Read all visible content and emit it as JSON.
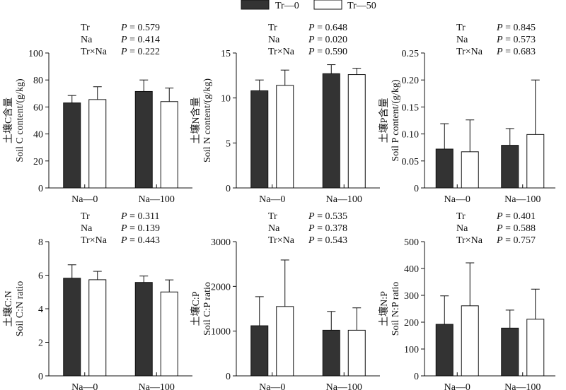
{
  "legend": {
    "items": [
      {
        "label": "Tr—0",
        "color": "#333333"
      },
      {
        "label": "Tr—50",
        "color": "#ffffff"
      }
    ]
  },
  "chart_data": [
    {
      "type": "bar",
      "ylabel_cn": "土壤C含量",
      "ylabel": "Soil C content/(g/kg)",
      "ylim": [
        0,
        100
      ],
      "yticks": [
        0,
        20,
        40,
        60,
        80,
        100
      ],
      "categories": [
        "Na—0",
        "Na—100"
      ],
      "series": [
        {
          "name": "Tr—0",
          "values": [
            63,
            71.5
          ],
          "errors": [
            5.5,
            8.5
          ]
        },
        {
          "name": "Tr—50",
          "values": [
            65.5,
            64
          ],
          "errors": [
            9.5,
            10
          ]
        }
      ],
      "stats": [
        {
          "factor": "Tr",
          "p": "0.579"
        },
        {
          "factor": "Na",
          "p": "0.414"
        },
        {
          "factor": "Tr×Na",
          "p": "0.222"
        }
      ]
    },
    {
      "type": "bar",
      "ylabel_cn": "土壤N含量",
      "ylabel": "Soil N content/(g/kg)",
      "ylim": [
        0,
        15
      ],
      "yticks": [
        0,
        5,
        10,
        15
      ],
      "categories": [
        "Na—0",
        "Na—100"
      ],
      "series": [
        {
          "name": "Tr—0",
          "values": [
            10.8,
            12.7
          ],
          "errors": [
            1.2,
            1
          ]
        },
        {
          "name": "Tr—50",
          "values": [
            11.4,
            12.6
          ],
          "errors": [
            1.7,
            0.7
          ]
        }
      ],
      "stats": [
        {
          "factor": "Tr",
          "p": "0.648"
        },
        {
          "factor": "Na",
          "p": "0.020"
        },
        {
          "factor": "Tr×Na",
          "p": "0.590"
        }
      ]
    },
    {
      "type": "bar",
      "ylabel_cn": "土壤P含量",
      "ylabel": "Soil P content/(g/kg)",
      "ylim": [
        0,
        0.25
      ],
      "yticks": [
        0,
        0.05,
        0.1,
        0.15,
        0.2,
        0.25
      ],
      "yticklabels": [
        "0",
        "0.05",
        "0.10",
        "0.15",
        "0.20",
        "0.25"
      ],
      "categories": [
        "Na—0",
        "Na—100"
      ],
      "series": [
        {
          "name": "Tr—0",
          "values": [
            0.072,
            0.079
          ],
          "errors": [
            0.047,
            0.031
          ]
        },
        {
          "name": "Tr—50",
          "values": [
            0.067,
            0.099
          ],
          "errors": [
            0.059,
            0.101
          ]
        }
      ],
      "stats": [
        {
          "factor": "Tr",
          "p": "0.845"
        },
        {
          "factor": "Na",
          "p": "0.573"
        },
        {
          "factor": "Tr×Na",
          "p": "0.683"
        }
      ]
    },
    {
      "type": "bar",
      "ylabel_cn": "土壤C:N",
      "ylabel": "Soil C:N ratio",
      "ylim": [
        0,
        8
      ],
      "yticks": [
        0,
        2,
        4,
        6,
        8
      ],
      "categories": [
        "Na—0",
        "Na—100"
      ],
      "series": [
        {
          "name": "Tr—0",
          "values": [
            5.82,
            5.57
          ],
          "errors": [
            0.8,
            0.38
          ]
        },
        {
          "name": "Tr—50",
          "values": [
            5.73,
            5.0
          ],
          "errors": [
            0.5,
            0.72
          ]
        }
      ],
      "stats": [
        {
          "factor": "Tr",
          "p": "0.311"
        },
        {
          "factor": "Na",
          "p": "0.139"
        },
        {
          "factor": "Tr×Na",
          "p": "0.443"
        }
      ]
    },
    {
      "type": "bar",
      "ylabel_cn": "土壤C:P",
      "ylabel": "Soil C:P ratio",
      "ylim": [
        0,
        3000
      ],
      "yticks": [
        0,
        1000,
        2000,
        3000
      ],
      "categories": [
        "Na—0",
        "Na—100"
      ],
      "series": [
        {
          "name": "Tr—0",
          "values": [
            1120,
            1020
          ],
          "errors": [
            650,
            420
          ]
        },
        {
          "name": "Tr—50",
          "values": [
            1550,
            1020
          ],
          "errors": [
            1040,
            500
          ]
        }
      ],
      "stats": [
        {
          "factor": "Tr",
          "p": "0.535"
        },
        {
          "factor": "Na",
          "p": "0.378"
        },
        {
          "factor": "Tr×Na",
          "p": "0.543"
        }
      ]
    },
    {
      "type": "bar",
      "ylabel_cn": "土壤N:P",
      "ylabel": "Soil N:P ratio",
      "ylim": [
        0,
        500
      ],
      "yticks": [
        0,
        100,
        200,
        300,
        400,
        500
      ],
      "categories": [
        "Na—0",
        "Na—100"
      ],
      "series": [
        {
          "name": "Tr—0",
          "values": [
            192,
            178
          ],
          "errors": [
            106,
            67
          ]
        },
        {
          "name": "Tr—50",
          "values": [
            261,
            211
          ],
          "errors": [
            160,
            112
          ]
        }
      ],
      "stats": [
        {
          "factor": "Tr",
          "p": "0.401"
        },
        {
          "factor": "Na",
          "p": "0.588"
        },
        {
          "factor": "Tr×Na",
          "p": "0.757"
        }
      ]
    }
  ]
}
